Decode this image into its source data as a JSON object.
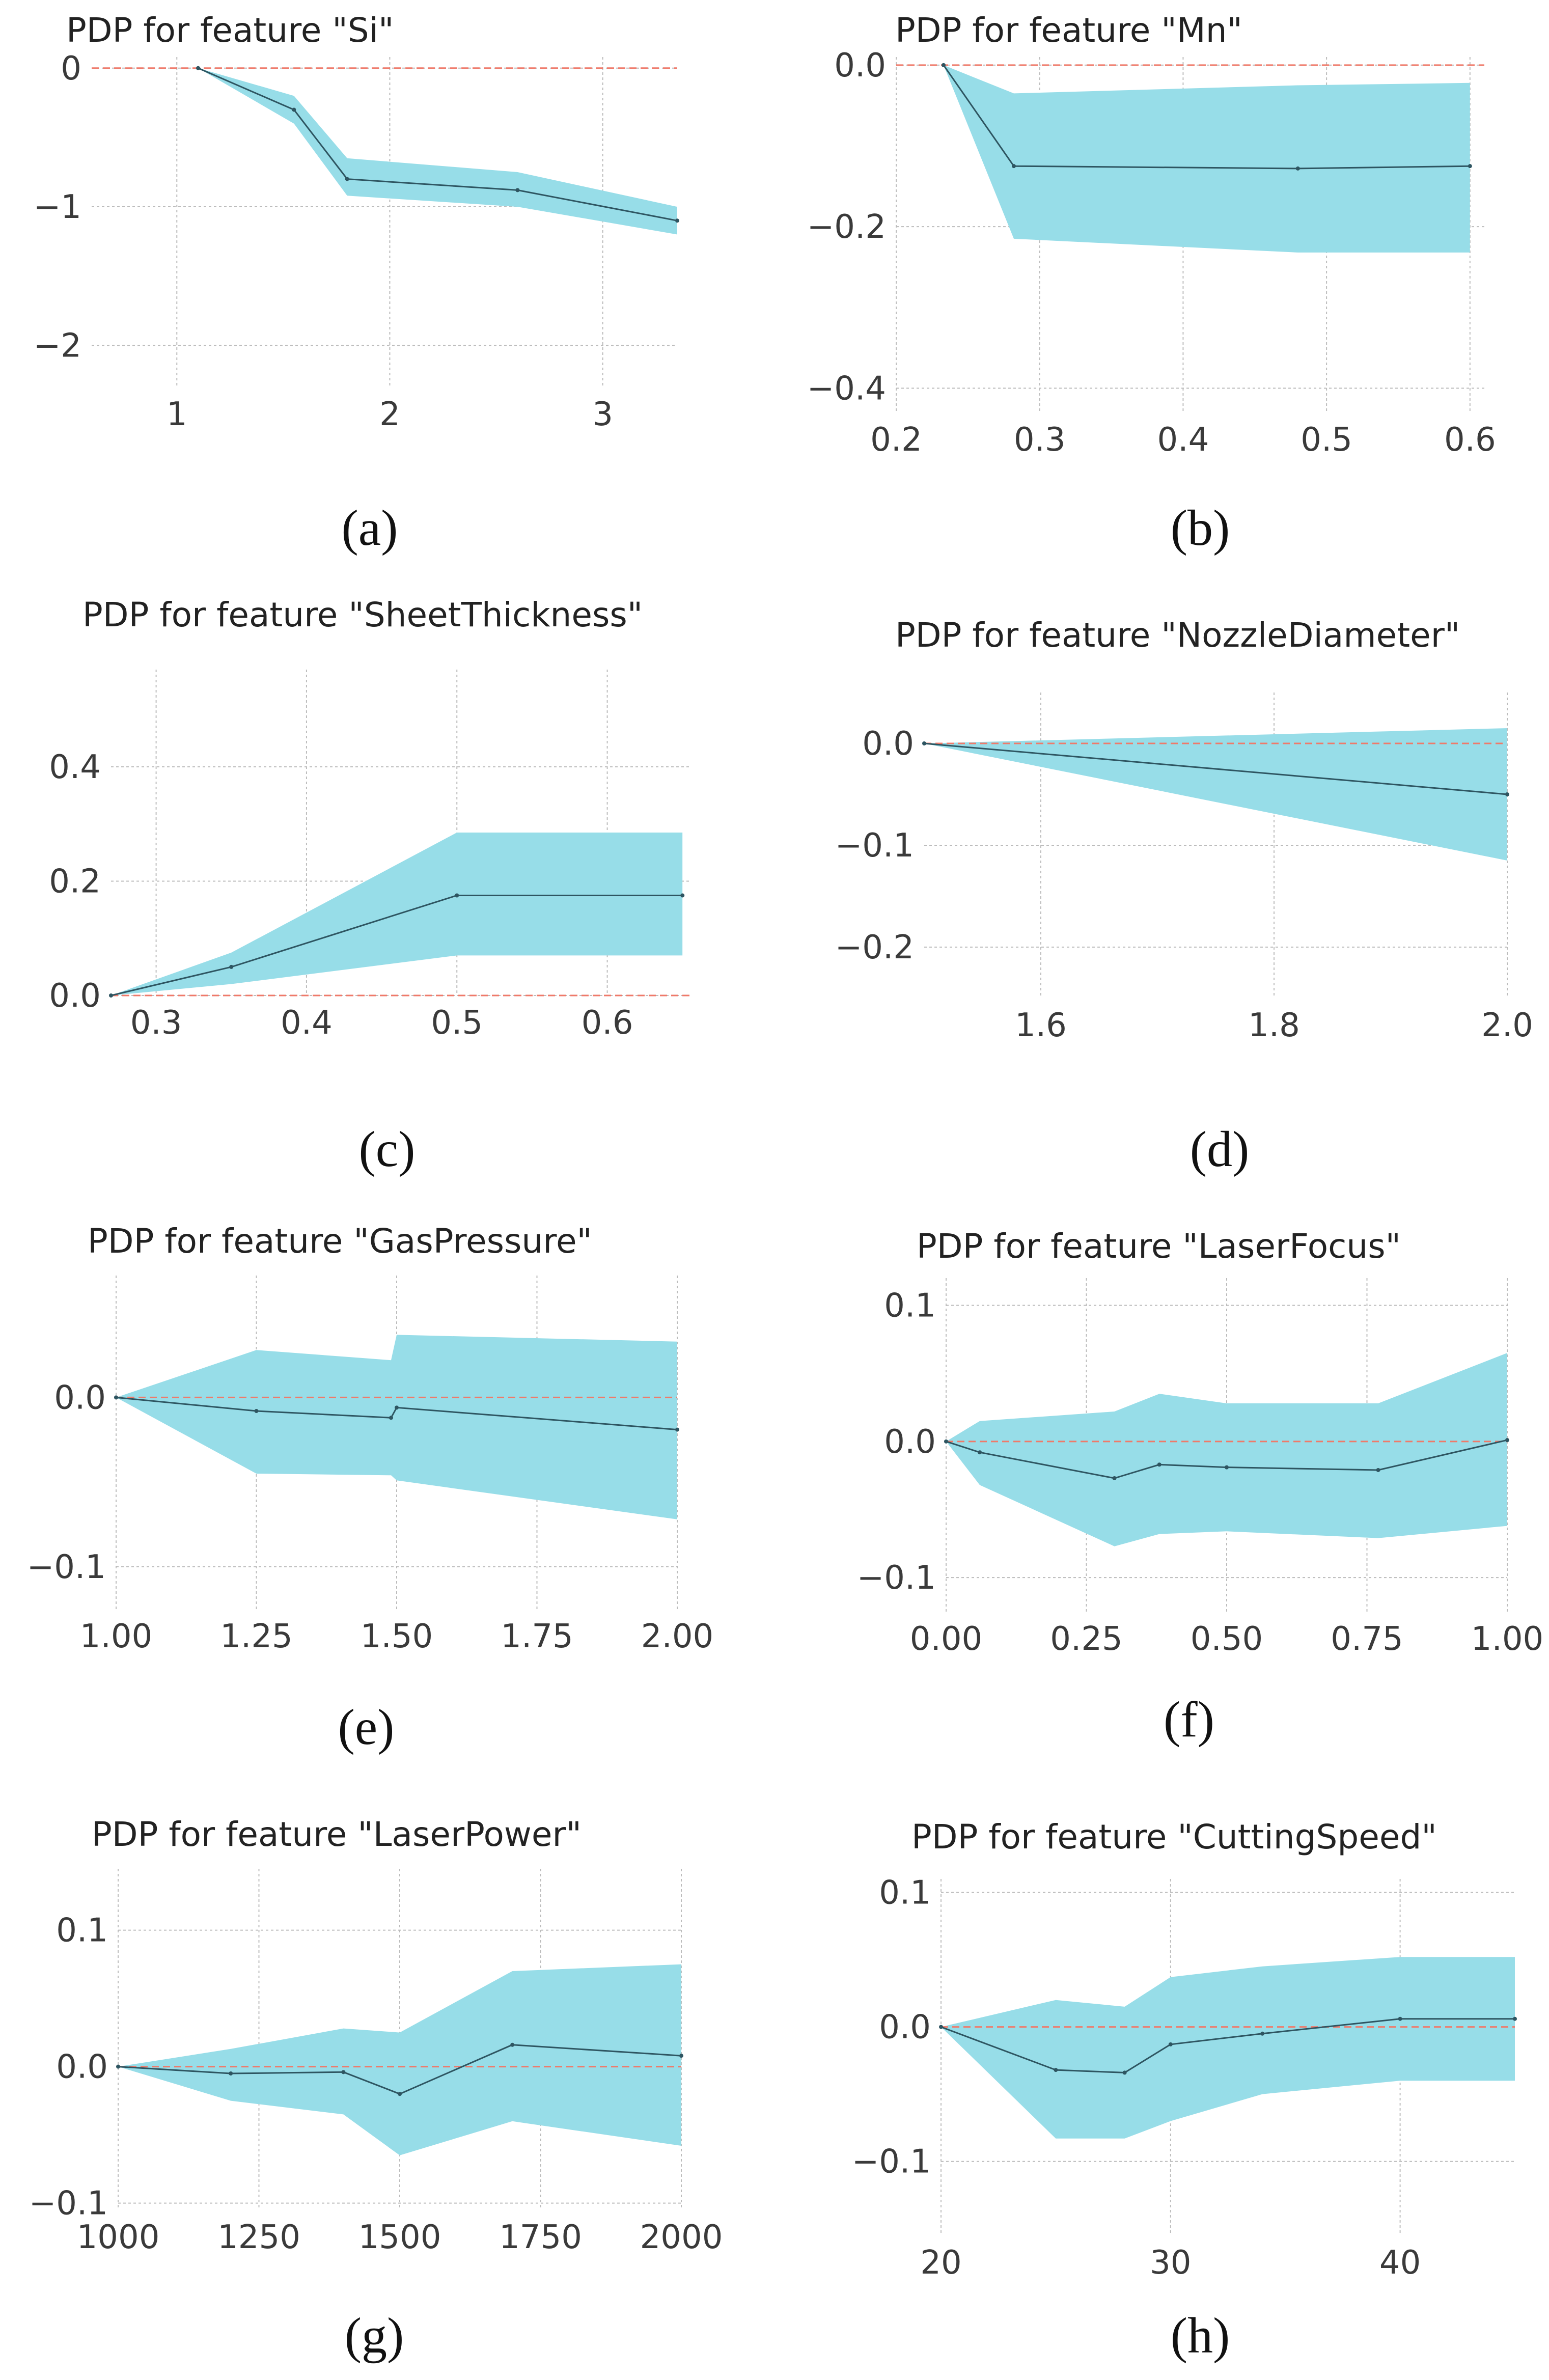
{
  "chart_data": [
    {
      "type": "area",
      "panel": "(a)",
      "title": "PDP for feature \"Si\"",
      "xlabel": "",
      "ylabel": "",
      "xlim": [
        0.6,
        3.35
      ],
      "ylim": [
        -2.3,
        0.08
      ],
      "xticks": [
        1,
        2,
        3
      ],
      "xtick_labels": [
        "1",
        "2",
        "3"
      ],
      "yticks": [
        0,
        -1,
        -2
      ],
      "ytick_labels": [
        "0",
        "−1",
        "−2"
      ],
      "grid": true,
      "x": [
        1.1,
        1.55,
        1.8,
        2.6,
        3.35
      ],
      "series": [
        {
          "role": "mean",
          "values": [
            0,
            -0.3,
            -0.8,
            -0.88,
            -1.1
          ]
        },
        {
          "role": "upper",
          "values": [
            0,
            -0.2,
            -0.65,
            -0.75,
            -1.0
          ]
        },
        {
          "role": "lower",
          "values": [
            0,
            -0.4,
            -0.92,
            -1.0,
            -1.2
          ]
        }
      ],
      "reference_line": 0
    },
    {
      "type": "area",
      "panel": "(b)",
      "title": "PDP for feature \"Mn\"",
      "xlabel": "",
      "ylabel": "",
      "xlim": [
        0.2,
        0.61
      ],
      "ylim": [
        -0.43,
        0.01
      ],
      "xticks": [
        0.2,
        0.3,
        0.4,
        0.5,
        0.6
      ],
      "xtick_labels": [
        "0.2",
        "0.3",
        "0.4",
        "0.5",
        "0.6"
      ],
      "yticks": [
        0.0,
        -0.2,
        -0.4
      ],
      "ytick_labels": [
        "0.0",
        "−0.2",
        "−0.4"
      ],
      "grid": true,
      "x": [
        0.233,
        0.282,
        0.48,
        0.6
      ],
      "series": [
        {
          "role": "mean",
          "values": [
            0,
            -0.125,
            -0.128,
            -0.125
          ]
        },
        {
          "role": "upper",
          "values": [
            0,
            -0.035,
            -0.025,
            -0.022
          ]
        },
        {
          "role": "lower",
          "values": [
            0,
            -0.215,
            -0.232,
            -0.232
          ]
        }
      ],
      "reference_line": 0
    },
    {
      "type": "area",
      "panel": "(c)",
      "title": "PDP for feature \"SheetThickness\"",
      "xlabel": "",
      "ylabel": "",
      "xlim": [
        0.27,
        0.655
      ],
      "ylim": [
        0.0,
        0.57
      ],
      "xticks": [
        0.3,
        0.4,
        0.5,
        0.6
      ],
      "xtick_labels": [
        "0.3",
        "0.4",
        "0.5",
        "0.6"
      ],
      "yticks": [
        0.0,
        0.2,
        0.4
      ],
      "ytick_labels": [
        "0.0",
        "0.2",
        "0.4"
      ],
      "grid": true,
      "x": [
        0.27,
        0.35,
        0.5,
        0.65
      ],
      "series": [
        {
          "role": "mean",
          "values": [
            0,
            0.05,
            0.175,
            0.175
          ]
        },
        {
          "role": "upper",
          "values": [
            0,
            0.075,
            0.285,
            0.285
          ]
        },
        {
          "role": "lower",
          "values": [
            0,
            0.02,
            0.07,
            0.07
          ]
        }
      ],
      "reference_line": 0
    },
    {
      "type": "area",
      "panel": "(d)",
      "title": "PDP for feature \"NozzleDiameter\"",
      "xlabel": "",
      "ylabel": "",
      "xlim": [
        1.5,
        2.0
      ],
      "ylim": [
        -0.25,
        0.05
      ],
      "xticks": [
        1.6,
        1.8,
        2.0
      ],
      "xtick_labels": [
        "1.6",
        "1.8",
        "2.0"
      ],
      "yticks": [
        0.0,
        -0.1,
        -0.2
      ],
      "ytick_labels": [
        "0.0",
        "−0.1",
        "−0.2"
      ],
      "grid": true,
      "x": [
        1.5,
        2.0
      ],
      "series": [
        {
          "role": "mean",
          "values": [
            0,
            -0.05
          ]
        },
        {
          "role": "upper",
          "values": [
            0,
            0.015
          ]
        },
        {
          "role": "lower",
          "values": [
            0,
            -0.115
          ]
        }
      ],
      "reference_line": 0
    },
    {
      "type": "area",
      "panel": "(e)",
      "title": "PDP for feature \"GasPressure\"",
      "xlabel": "",
      "ylabel": "",
      "xlim": [
        1.0,
        2.0
      ],
      "ylim": [
        -0.125,
        0.072
      ],
      "xticks": [
        1.0,
        1.25,
        1.5,
        1.75,
        2.0
      ],
      "xtick_labels": [
        "1.00",
        "1.25",
        "1.50",
        "1.75",
        "2.00"
      ],
      "yticks": [
        0.0,
        -0.1
      ],
      "ytick_labels": [
        "0.0",
        "−0.1"
      ],
      "grid": true,
      "x": [
        1.0,
        1.25,
        1.49,
        1.5,
        2.0
      ],
      "series": [
        {
          "role": "mean",
          "values": [
            0,
            -0.008,
            -0.012,
            -0.006,
            -0.019
          ]
        },
        {
          "role": "upper",
          "values": [
            0,
            0.028,
            0.022,
            0.037,
            0.033
          ]
        },
        {
          "role": "lower",
          "values": [
            0,
            -0.045,
            -0.046,
            -0.049,
            -0.072
          ]
        }
      ],
      "reference_line": 0
    },
    {
      "type": "area",
      "panel": "(f)",
      "title": "PDP for feature \"LaserFocus\"",
      "xlabel": "",
      "ylabel": "",
      "xlim": [
        0.0,
        1.0
      ],
      "ylim": [
        -0.125,
        0.12
      ],
      "xticks": [
        0.0,
        0.25,
        0.5,
        0.75,
        1.0
      ],
      "xtick_labels": [
        "0.00",
        "0.25",
        "0.50",
        "0.75",
        "1.00"
      ],
      "yticks": [
        0.1,
        0.0,
        -0.1
      ],
      "ytick_labels": [
        "0.1",
        "0.0",
        "−0.1"
      ],
      "grid": true,
      "x": [
        0.0,
        0.06,
        0.3,
        0.38,
        0.5,
        0.77,
        1.0
      ],
      "series": [
        {
          "role": "mean",
          "values": [
            0,
            -0.008,
            -0.027,
            -0.017,
            -0.019,
            -0.021,
            0.001
          ]
        },
        {
          "role": "upper",
          "values": [
            0,
            0.015,
            0.022,
            0.035,
            0.028,
            0.028,
            0.065
          ]
        },
        {
          "role": "lower",
          "values": [
            0,
            -0.032,
            -0.077,
            -0.068,
            -0.066,
            -0.071,
            -0.062
          ]
        }
      ],
      "reference_line": 0
    },
    {
      "type": "area",
      "panel": "(g)",
      "title": "PDP for feature \"LaserPower\"",
      "xlabel": "",
      "ylabel": "",
      "xlim": [
        1000,
        2000
      ],
      "ylim": [
        -0.105,
        0.145
      ],
      "xticks": [
        1000,
        1250,
        1500,
        1750,
        2000
      ],
      "xtick_labels": [
        "1000",
        "1250",
        "1500",
        "1750",
        "2000"
      ],
      "yticks": [
        0.1,
        0.0,
        -0.1
      ],
      "ytick_labels": [
        "0.1",
        "0.0",
        "−0.1"
      ],
      "grid": true,
      "x": [
        1000,
        1200,
        1400,
        1500,
        1700,
        2000
      ],
      "series": [
        {
          "role": "mean",
          "values": [
            0,
            -0.005,
            -0.004,
            -0.02,
            0.016,
            0.008
          ]
        },
        {
          "role": "upper",
          "values": [
            0,
            0.013,
            0.028,
            0.025,
            0.07,
            0.075
          ]
        },
        {
          "role": "lower",
          "values": [
            0,
            -0.025,
            -0.035,
            -0.065,
            -0.04,
            -0.058
          ]
        }
      ],
      "reference_line": 0
    },
    {
      "type": "area",
      "panel": "(h)",
      "title": "PDP for feature \"CuttingSpeed\"",
      "xlabel": "",
      "ylabel": "",
      "xlim": [
        20,
        45
      ],
      "ylim": [
        -0.155,
        0.11
      ],
      "xticks": [
        20,
        30,
        40
      ],
      "xtick_labels": [
        "20",
        "30",
        "40"
      ],
      "yticks": [
        0.1,
        0.0,
        -0.1
      ],
      "ytick_labels": [
        "0.1",
        "0.0",
        "−0.1"
      ],
      "grid": true,
      "x": [
        20,
        25,
        28,
        30,
        34,
        40,
        45
      ],
      "series": [
        {
          "role": "mean",
          "values": [
            0,
            -0.032,
            -0.034,
            -0.013,
            -0.005,
            0.006,
            0.006
          ]
        },
        {
          "role": "upper",
          "values": [
            0,
            0.02,
            0.015,
            0.037,
            0.045,
            0.052,
            0.052
          ]
        },
        {
          "role": "lower",
          "values": [
            0,
            -0.083,
            -0.083,
            -0.07,
            -0.05,
            -0.04,
            -0.04
          ]
        }
      ],
      "reference_line": 0
    }
  ],
  "colors": {
    "band": "#97dde8",
    "mean_line": "#2e5561",
    "reference_line": "#ef7a6a",
    "grid": "#bcbcbc",
    "text": "#3a3a3a"
  }
}
